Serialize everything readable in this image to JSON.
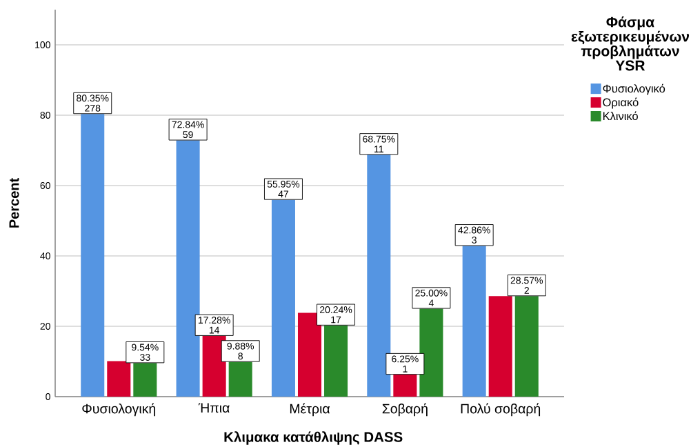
{
  "chart_data": {
    "type": "bar",
    "xlabel": "Κλιμακα κατάθλιψης DASS",
    "ylabel": "Percent",
    "legend_title": "Φάσμα εξωτερικευμένων προβλημάτων YSR",
    "categories": [
      "Φυσιολογική",
      "Ήπια",
      "Μέτρια",
      "Σοβαρή",
      "Πολύ σοβαρή"
    ],
    "series": [
      {
        "name": "Φυσιολογικό",
        "color": "#5595e2",
        "values": [
          80.35,
          72.84,
          55.95,
          68.75,
          42.86
        ],
        "value_labels": [
          "80.35% 278",
          "72.84% 59",
          "55.95% 47",
          "68.75% 11",
          "42.86% 3"
        ]
      },
      {
        "name": "Οριακό",
        "color": "#d6002f",
        "values": [
          10.1,
          17.28,
          23.8,
          6.25,
          28.6
        ],
        "value_labels": [
          null,
          "17.28% 14",
          null,
          "6.25% 1",
          null
        ]
      },
      {
        "name": "Κλινικό",
        "color": "#2a8a2b",
        "values": [
          9.54,
          9.88,
          20.24,
          25.0,
          28.57
        ],
        "value_labels": [
          "9.54% 33",
          "9.88% 8",
          "20.24% 17",
          "25.00% 4",
          "28.57% 2"
        ]
      }
    ],
    "ylim": [
      0,
      110
    ],
    "yticks": [
      0,
      20,
      40,
      60,
      80,
      100
    ],
    "grid": "y",
    "legend": "top right"
  }
}
